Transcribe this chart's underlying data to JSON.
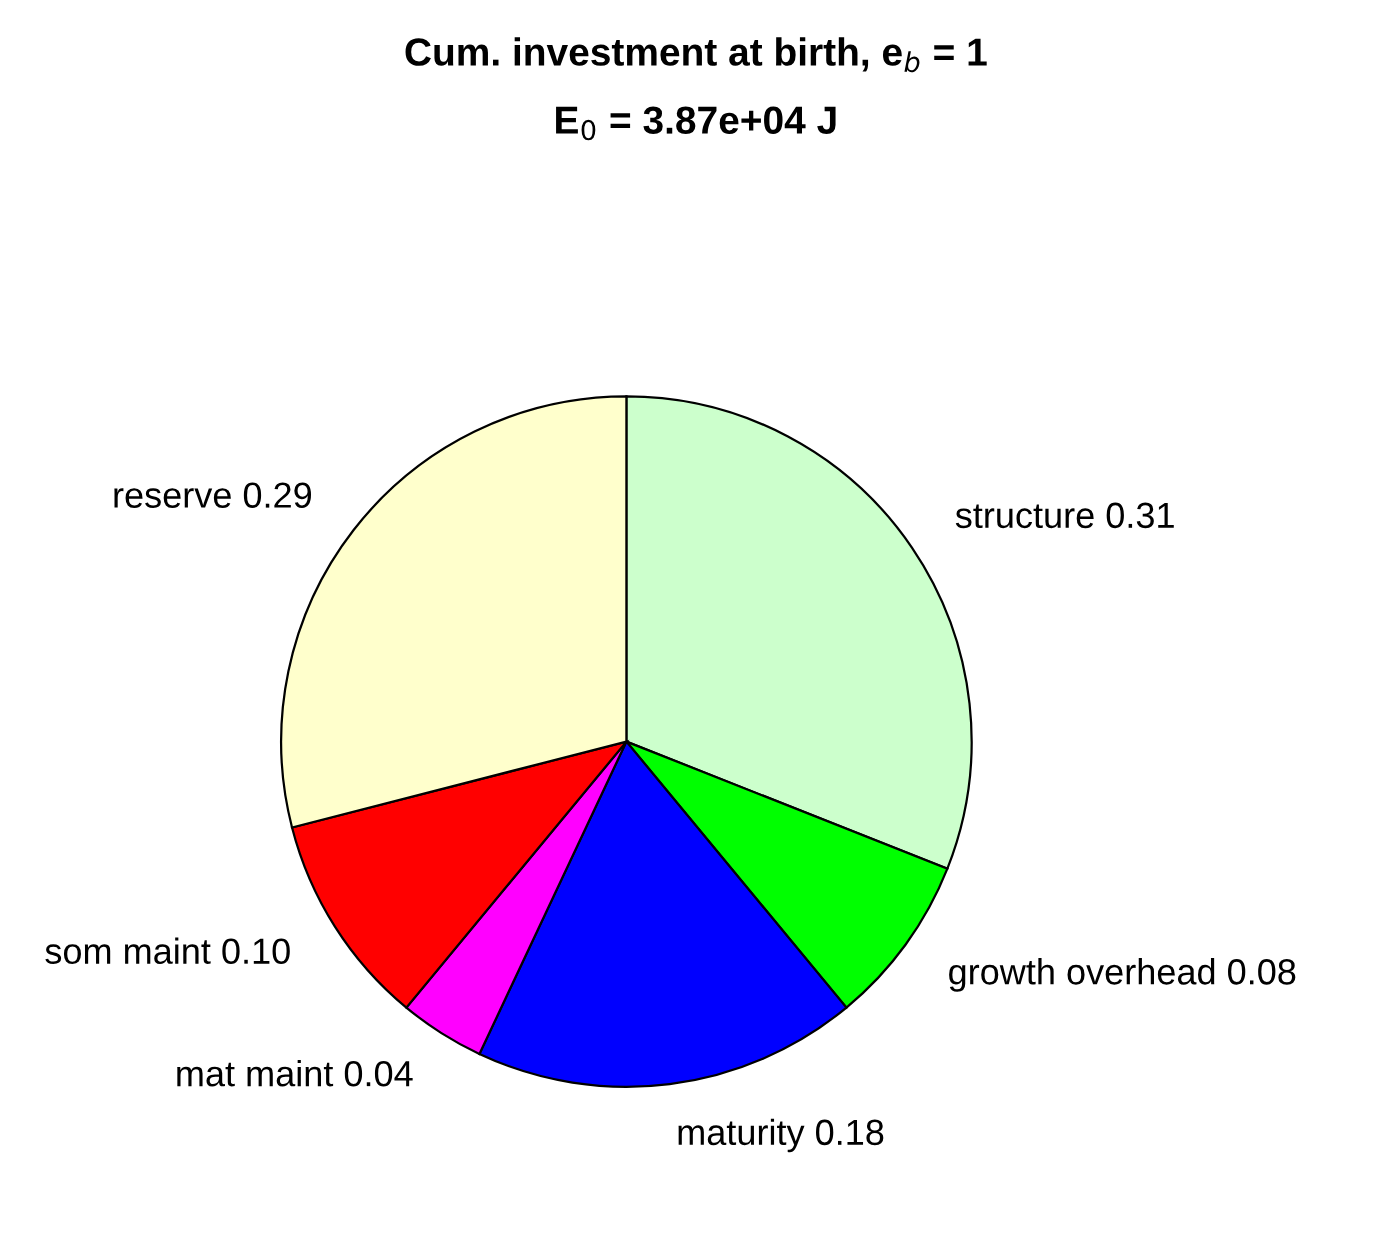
{
  "chart_data": {
    "type": "pie",
    "title": "Cum. investment at birth, e$_{b}$ = 1",
    "subtitle": "E$_{0}$ = 3.87e+04 J",
    "categories": [
      "structure",
      "growth overhead",
      "maturity",
      "mat maint",
      "som maint",
      "reserve"
    ],
    "values": [
      0.31,
      0.08,
      0.18,
      0.04,
      0.1,
      0.29
    ],
    "value_labels": [
      "0.31",
      "0.08",
      "0.18",
      "0.04",
      "0.10",
      "0.29"
    ],
    "colors": [
      "#ccffcc",
      "#00ff00",
      "#0000ff",
      "#ff00ff",
      "#ff0000",
      "#ffffcc"
    ],
    "legend": false
  }
}
